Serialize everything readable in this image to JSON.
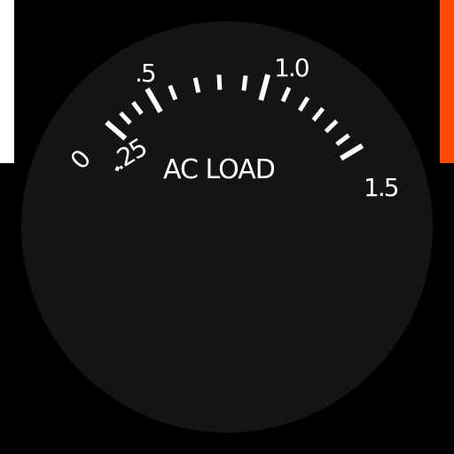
{
  "gauge": {
    "title": "AC LOAD",
    "scale_labels": [
      "0",
      ".25",
      ".5",
      "1.0",
      "1.5"
    ],
    "colors": {
      "background": "#000000",
      "dial_face": "#141414",
      "tick": "#ffffff",
      "text": "#ffffff",
      "left_bar": "#ffffff",
      "right_bar": "#ff4a00"
    }
  }
}
